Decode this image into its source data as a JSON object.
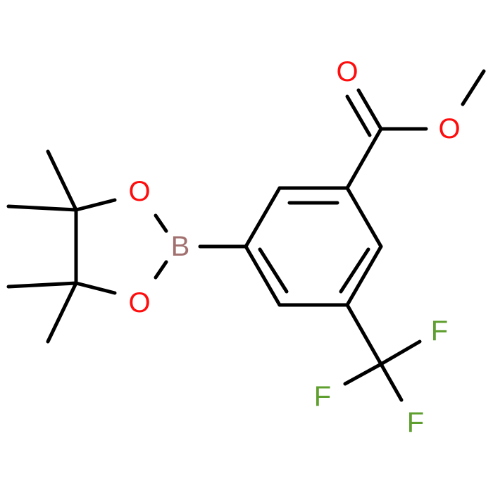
{
  "atoms": [
    {
      "label": "O"
    },
    {
      "label": "O"
    },
    {
      "label": "B"
    },
    {
      "label": "O"
    },
    {
      "label": "O"
    },
    {
      "label": "F"
    },
    {
      "label": "F"
    },
    {
      "label": "F"
    }
  ]
}
